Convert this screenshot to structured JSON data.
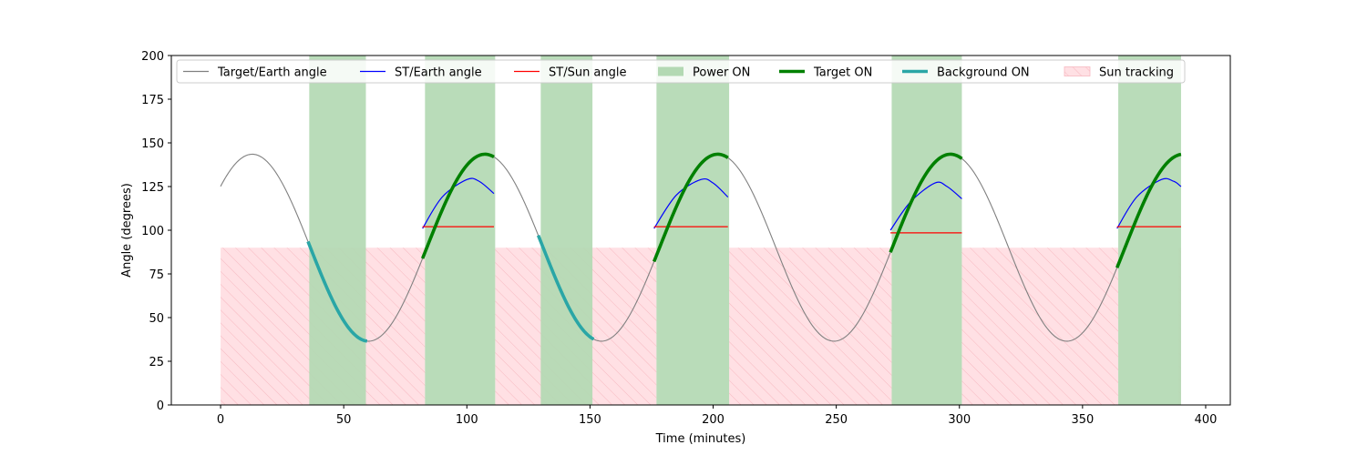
{
  "chart_data": {
    "type": "line",
    "title": "",
    "xlabel": "Time (minutes)",
    "ylabel": "Angle (degrees)",
    "xlim": [
      -20,
      410
    ],
    "ylim": [
      0,
      200
    ],
    "xticks": [
      0,
      50,
      100,
      150,
      200,
      250,
      300,
      350,
      400
    ],
    "yticks": [
      0,
      25,
      50,
      75,
      100,
      125,
      150,
      175,
      200
    ],
    "grid": false,
    "legend_position": "top",
    "colors": {
      "target_earth": "#808080",
      "st_earth": "#0000ff",
      "st_sun": "#ff0000",
      "power_on": "#b3d9b3",
      "target_on": "#008000",
      "background_on": "#2aa6a6",
      "sun_tracking_fill": "#ffe0e4",
      "sun_tracking_hatch": "#f7b8c0"
    },
    "target_earth_model": {
      "mean": 90,
      "amplitude": 53.5,
      "period_min": 94.5,
      "phase_at_t0_deg": 41
    },
    "series": [
      {
        "key": "target_earth",
        "name": "Target/Earth angle",
        "x_range": [
          0,
          390
        ]
      },
      {
        "key": "st_earth",
        "name": "ST/Earth angle",
        "segments": [
          {
            "x": [
              82,
              90,
              100,
              105,
              111
            ],
            "y": [
              101,
              119,
              129,
              128,
              121
            ]
          },
          {
            "x": [
              176,
              185,
              195,
              200,
              206
            ],
            "y": [
              101,
              120,
              129,
              127,
              119
            ]
          },
          {
            "x": [
              272,
              280,
              290,
              295,
              301
            ],
            "y": [
              100,
              116,
              127,
              125,
              118
            ]
          },
          {
            "x": [
              364,
              372,
              382,
              387,
              390
            ],
            "y": [
              101,
              119,
              129,
              128,
              125
            ]
          }
        ]
      },
      {
        "key": "st_sun",
        "name": "ST/Sun angle",
        "segments": [
          {
            "x": [
              82,
              111
            ],
            "y": [
              102,
              102
            ]
          },
          {
            "x": [
              176,
              206
            ],
            "y": [
              102,
              102
            ]
          },
          {
            "x": [
              272,
              301
            ],
            "y": [
              98.5,
              98.5
            ]
          },
          {
            "x": [
              364,
              390
            ],
            "y": [
              102,
              102
            ]
          }
        ]
      },
      {
        "key": "target_on",
        "name": "Target ON",
        "segments": [
          [
            82,
            111
          ],
          [
            176,
            206
          ],
          [
            272,
            301
          ],
          [
            364,
            390
          ]
        ]
      },
      {
        "key": "background_on",
        "name": "Background ON",
        "segments": [
          [
            35.5,
            59.5
          ],
          [
            129,
            151.5
          ]
        ]
      }
    ],
    "power_on_spans": [
      [
        36,
        59
      ],
      [
        83,
        111.5
      ],
      [
        130,
        151
      ],
      [
        177,
        206.5
      ],
      [
        272.5,
        301
      ],
      [
        364.5,
        390
      ]
    ],
    "sun_tracking_spans": [
      [
        0,
        83
      ],
      [
        111.5,
        177
      ],
      [
        206.5,
        272.5
      ],
      [
        301,
        364.5
      ],
      [
        389,
        390
      ]
    ],
    "sun_tracking_max_y": 90,
    "legend": [
      {
        "label": "Target/Earth angle",
        "kind": "line",
        "color_key": "target_earth"
      },
      {
        "label": "ST/Earth angle",
        "kind": "line",
        "color_key": "st_earth"
      },
      {
        "label": "ST/Sun angle",
        "kind": "line",
        "color_key": "st_sun"
      },
      {
        "label": "Power ON",
        "kind": "patch",
        "color_key": "power_on"
      },
      {
        "label": "Target ON",
        "kind": "thick-line",
        "color_key": "target_on"
      },
      {
        "label": "Background ON",
        "kind": "thick-line",
        "color_key": "background_on"
      },
      {
        "label": "Sun tracking",
        "kind": "hatch",
        "color_key": "sun_tracking_fill"
      }
    ]
  }
}
